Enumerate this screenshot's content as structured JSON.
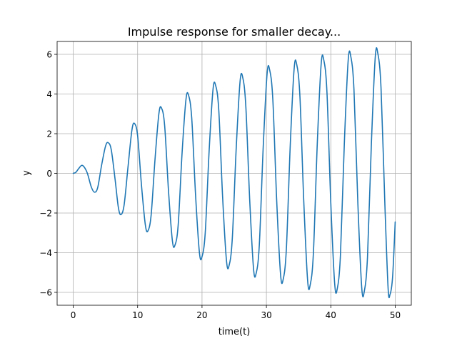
{
  "chart_data": {
    "type": "line",
    "title": "Impulse response for smaller decay...",
    "xlabel": "time(t)",
    "ylabel": "y",
    "xlim": [
      -2.5,
      52.5
    ],
    "ylim": [
      -6.65,
      6.65
    ],
    "xticks": [
      0,
      10,
      20,
      30,
      40,
      50
    ],
    "yticks": [
      -6,
      -4,
      -2,
      0,
      2,
      4,
      6
    ],
    "xtick_labels": [
      "0",
      "10",
      "20",
      "30",
      "40",
      "50"
    ],
    "ytick_labels": [
      "−6",
      "−4",
      "−2",
      "0",
      "2",
      "4",
      "6"
    ],
    "grid": true,
    "legend": "none",
    "line_color": "#1f77b4",
    "series": [
      {
        "points": [
          [
            0.0,
            0.0
          ],
          [
            0.4,
            0.05
          ],
          [
            0.8,
            0.22
          ],
          [
            1.3,
            0.4
          ],
          [
            1.7,
            0.32
          ],
          [
            2.2,
            0.0
          ],
          [
            2.8,
            -0.68
          ],
          [
            3.3,
            -0.95
          ],
          [
            3.8,
            -0.72
          ],
          [
            4.4,
            0.4
          ],
          [
            5.0,
            1.35
          ],
          [
            5.4,
            1.55
          ],
          [
            5.9,
            1.2
          ],
          [
            6.5,
            -0.3
          ],
          [
            7.0,
            -1.7
          ],
          [
            7.4,
            -2.08
          ],
          [
            7.9,
            -1.6
          ],
          [
            8.5,
            0.3
          ],
          [
            9.1,
            2.15
          ],
          [
            9.5,
            2.52
          ],
          [
            10.0,
            1.9
          ],
          [
            10.6,
            -0.6
          ],
          [
            11.2,
            -2.6
          ],
          [
            11.6,
            -2.9
          ],
          [
            12.1,
            -2.1
          ],
          [
            12.7,
            0.7
          ],
          [
            13.3,
            3.0
          ],
          [
            13.7,
            3.3
          ],
          [
            14.2,
            2.4
          ],
          [
            14.8,
            -0.9
          ],
          [
            15.4,
            -3.4
          ],
          [
            15.8,
            -3.62
          ],
          [
            16.3,
            -2.6
          ],
          [
            16.9,
            1.0
          ],
          [
            17.5,
            3.7
          ],
          [
            17.9,
            3.95
          ],
          [
            18.4,
            2.8
          ],
          [
            19.0,
            -1.1
          ],
          [
            19.6,
            -4.0
          ],
          [
            20.0,
            -4.2
          ],
          [
            20.5,
            -3.0
          ],
          [
            21.1,
            1.1
          ],
          [
            21.7,
            4.2
          ],
          [
            22.1,
            4.45
          ],
          [
            22.6,
            3.2
          ],
          [
            23.2,
            -1.2
          ],
          [
            23.8,
            -4.4
          ],
          [
            24.2,
            -4.65
          ],
          [
            24.7,
            -3.3
          ],
          [
            25.3,
            1.2
          ],
          [
            25.9,
            4.6
          ],
          [
            26.3,
            4.87
          ],
          [
            26.8,
            3.4
          ],
          [
            27.4,
            -1.3
          ],
          [
            28.0,
            -4.8
          ],
          [
            28.4,
            -5.05
          ],
          [
            28.9,
            -3.6
          ],
          [
            29.5,
            1.3
          ],
          [
            30.1,
            5.0
          ],
          [
            30.5,
            5.22
          ],
          [
            31.0,
            3.7
          ],
          [
            31.6,
            -1.4
          ],
          [
            32.2,
            -5.1
          ],
          [
            32.6,
            -5.35
          ],
          [
            33.1,
            -3.8
          ],
          [
            33.7,
            1.4
          ],
          [
            34.3,
            5.25
          ],
          [
            34.7,
            5.5
          ],
          [
            35.2,
            3.9
          ],
          [
            35.8,
            -1.4
          ],
          [
            36.4,
            -5.4
          ],
          [
            36.8,
            -5.62
          ],
          [
            37.3,
            -4.0
          ],
          [
            37.9,
            1.5
          ],
          [
            38.5,
            5.5
          ],
          [
            38.9,
            5.73
          ],
          [
            39.4,
            4.1
          ],
          [
            40.0,
            -1.5
          ],
          [
            40.6,
            -5.55
          ],
          [
            41.0,
            -5.82
          ],
          [
            41.5,
            -4.1
          ],
          [
            42.1,
            1.5
          ],
          [
            42.7,
            5.7
          ],
          [
            43.1,
            5.9
          ],
          [
            43.6,
            4.2
          ],
          [
            44.2,
            -1.5
          ],
          [
            44.8,
            -5.75
          ],
          [
            45.2,
            -5.95
          ],
          [
            45.7,
            -4.2
          ],
          [
            46.3,
            1.5
          ],
          [
            46.9,
            5.85
          ],
          [
            47.3,
            6.05
          ],
          [
            47.8,
            4.3
          ],
          [
            48.4,
            -1.6
          ],
          [
            48.9,
            -5.8
          ],
          [
            49.2,
            -6.1
          ],
          [
            49.6,
            -5.2
          ],
          [
            50.0,
            -2.45
          ]
        ]
      }
    ]
  }
}
